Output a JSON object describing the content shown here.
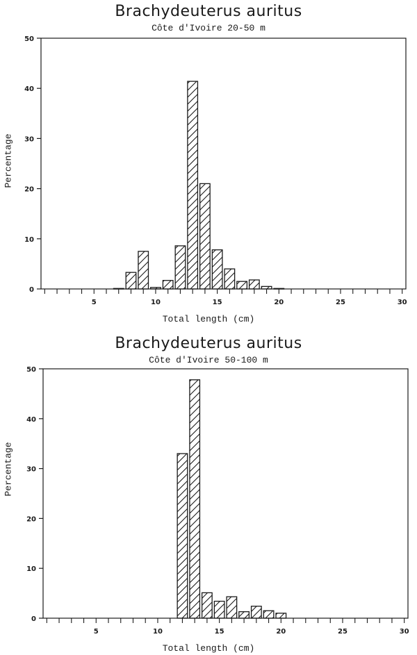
{
  "chart_data": [
    {
      "type": "bar",
      "title": "Brachydeuterus auritus",
      "subtitle": "Côte d'Ivoire 20-50 m",
      "xlabel": "Total length (cm)",
      "ylabel": "Percentage",
      "xlim": [
        0.7,
        30.3
      ],
      "ylim": [
        0,
        50
      ],
      "xticks": [
        5,
        10,
        15,
        20,
        25,
        30
      ],
      "yticks": [
        0,
        10,
        20,
        30,
        40,
        50
      ],
      "grid": false,
      "legend": null,
      "fill_pattern": "diagonal-hatch",
      "categories": [
        7,
        8,
        9,
        10,
        11,
        12,
        13,
        14,
        15,
        16,
        17,
        18,
        19,
        20
      ],
      "values": [
        0.1,
        3.3,
        7.5,
        0.3,
        1.7,
        8.6,
        41.4,
        21.0,
        7.8,
        4.0,
        1.5,
        1.8,
        0.5,
        0.1
      ]
    },
    {
      "type": "bar",
      "title": "Brachydeuterus auritus",
      "subtitle": "Côte d'Ivoire 50-100 m",
      "xlabel": "Total length (cm)",
      "ylabel": "Percentage",
      "xlim": [
        0.7,
        30.3
      ],
      "ylim": [
        0,
        50
      ],
      "xticks": [
        5,
        10,
        15,
        20,
        25,
        30
      ],
      "yticks": [
        0,
        10,
        20,
        30,
        40,
        50
      ],
      "grid": false,
      "legend": null,
      "fill_pattern": "diagonal-hatch",
      "categories": [
        12,
        13,
        14,
        15,
        16,
        17,
        18,
        19,
        20
      ],
      "values": [
        33.0,
        47.8,
        5.1,
        3.4,
        4.3,
        1.3,
        2.4,
        1.5,
        1.0
      ]
    }
  ]
}
